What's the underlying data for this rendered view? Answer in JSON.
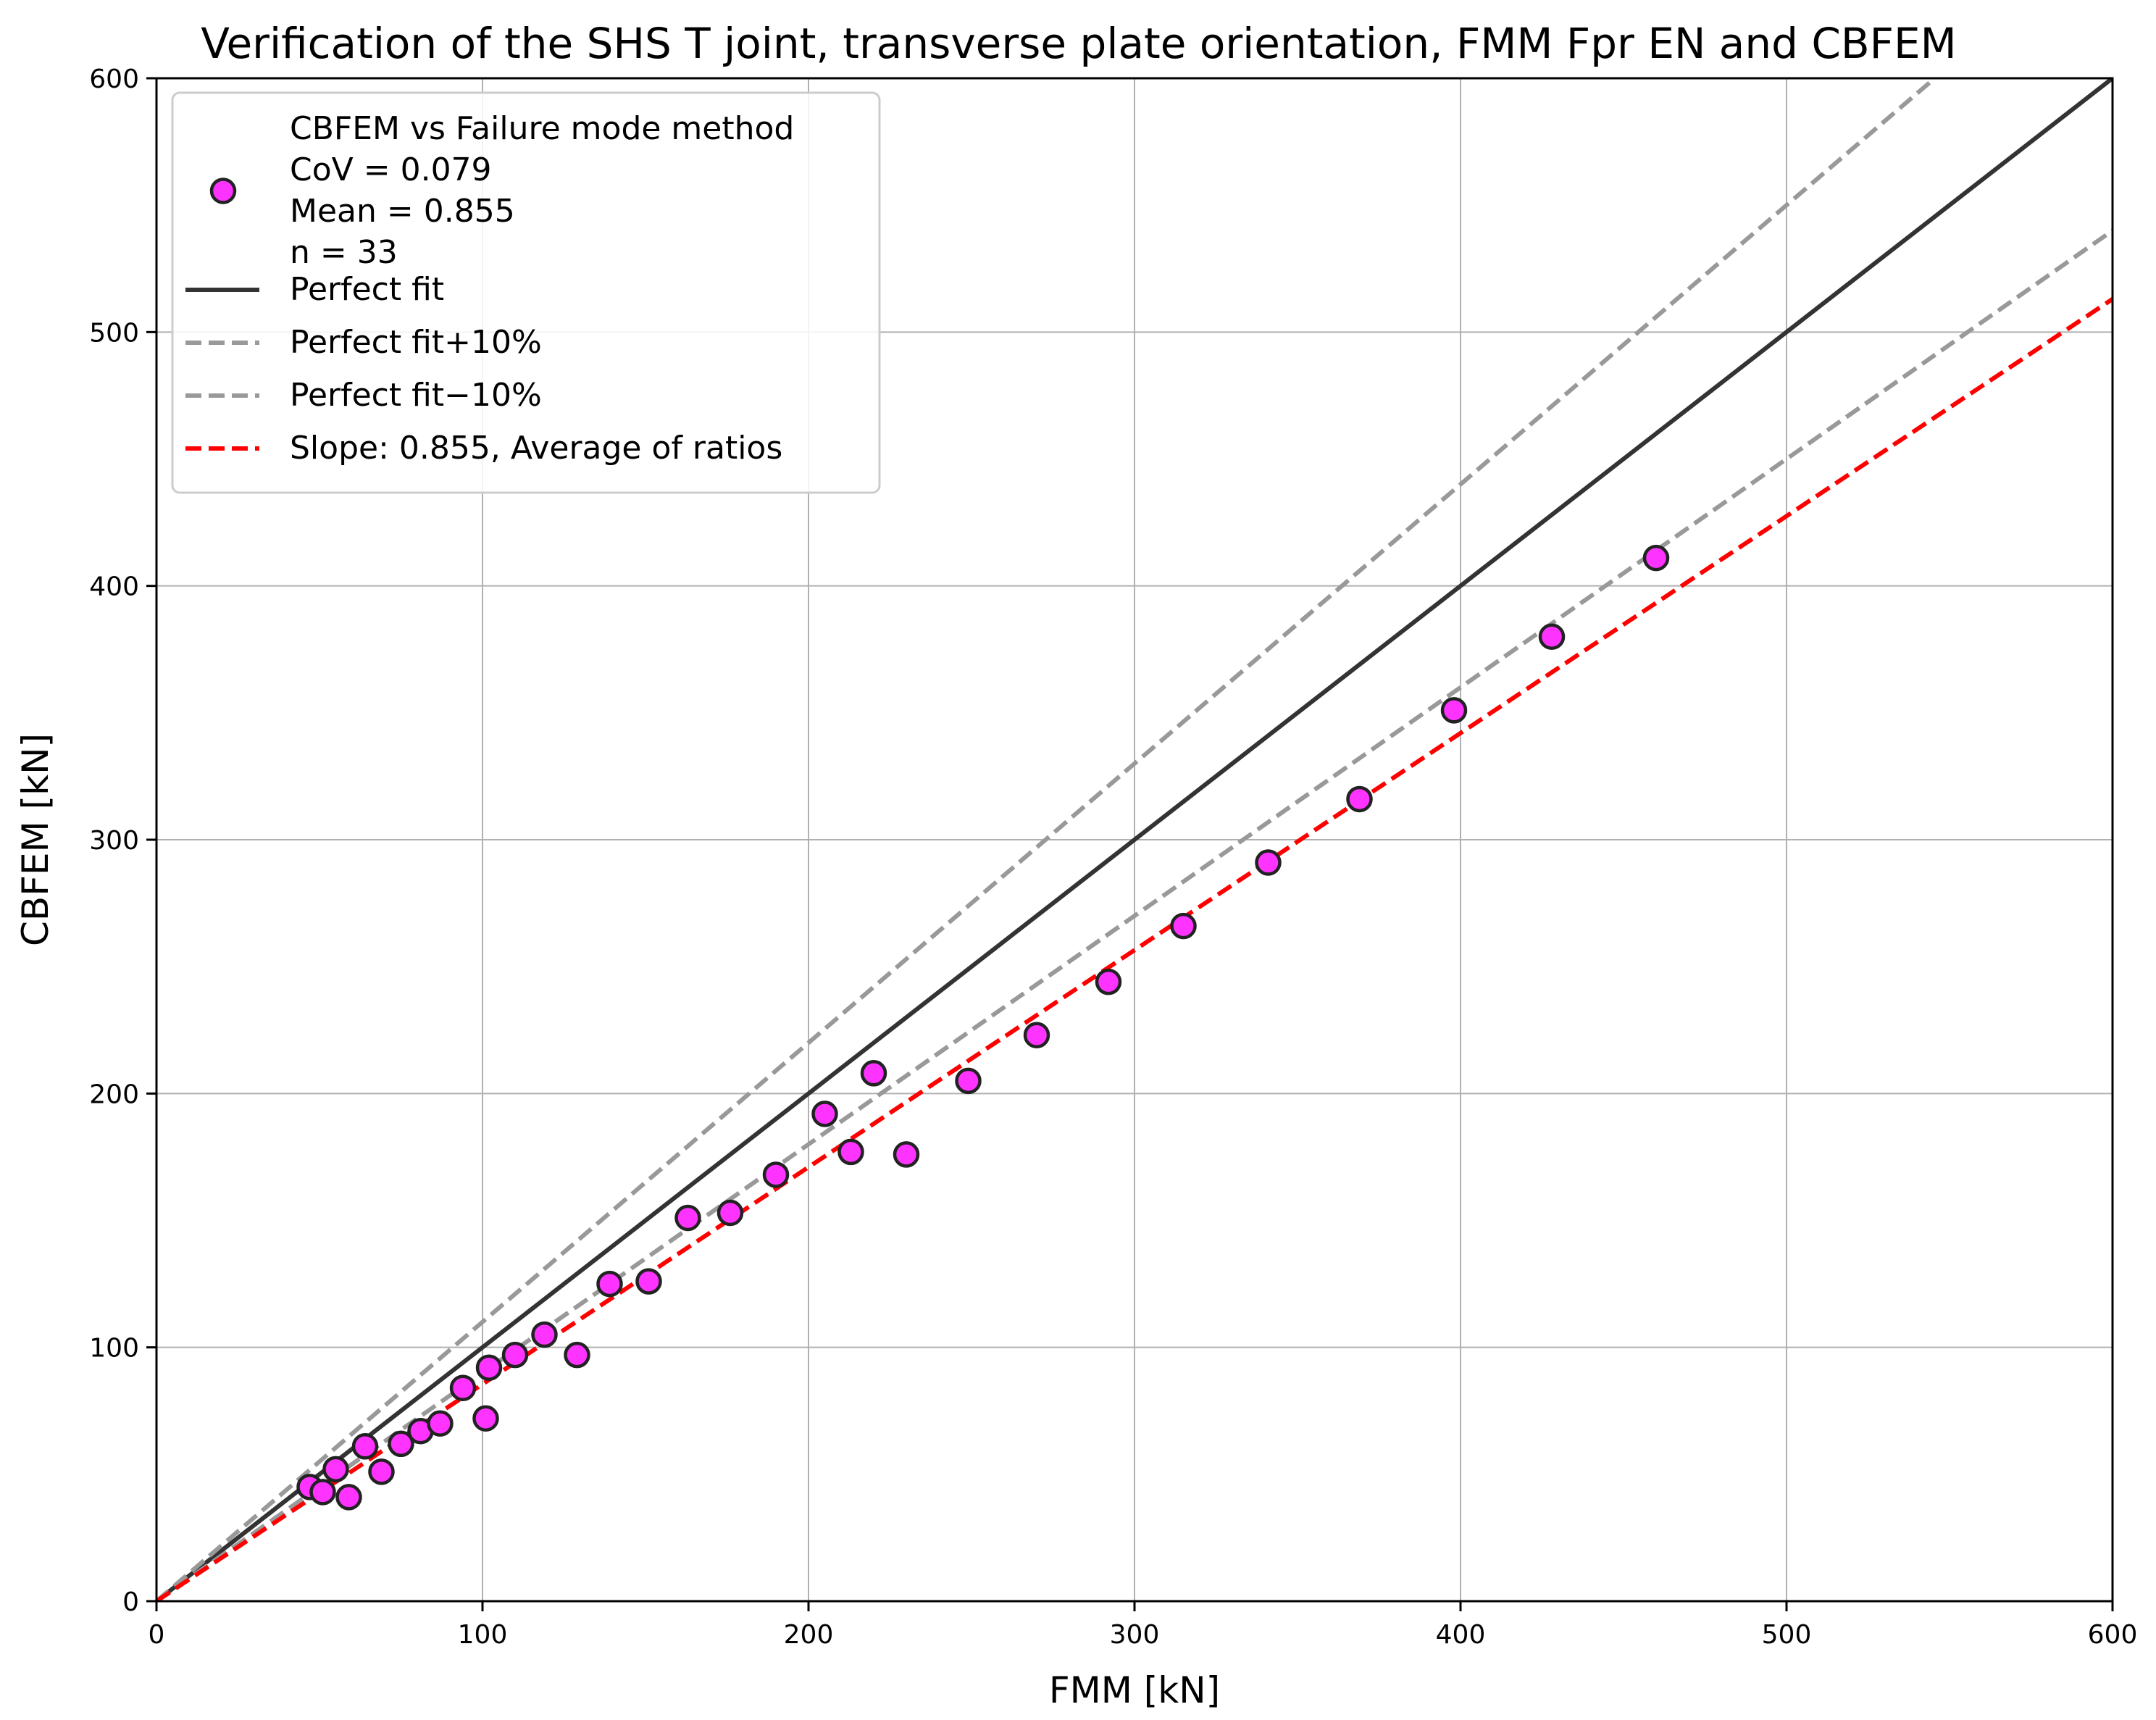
{
  "chart_data": {
    "type": "scatter",
    "title": "Verification of the SHS T joint, transverse plate orientation, FMM Fpr EN and CBFEM",
    "xlabel": "FMM [kN]",
    "ylabel": "CBFEM [kN]",
    "xlim": [
      0,
      600
    ],
    "ylim": [
      0,
      600
    ],
    "xticks": [
      0,
      100,
      200,
      300,
      400,
      500,
      600
    ],
    "yticks": [
      0,
      100,
      200,
      300,
      400,
      500,
      600
    ],
    "grid": true,
    "legend_position": "top-left",
    "scatter": {
      "legend_lines": [
        "CBFEM vs Failure mode method",
        "CoV = 0.079",
        "Mean = 0.855",
        "n = 33"
      ],
      "color": "#ff33ff",
      "edge_color": "#222222",
      "points": [
        {
          "x": 47,
          "y": 45
        },
        {
          "x": 51,
          "y": 43
        },
        {
          "x": 55,
          "y": 52
        },
        {
          "x": 59,
          "y": 41
        },
        {
          "x": 64,
          "y": 61
        },
        {
          "x": 69,
          "y": 51
        },
        {
          "x": 75,
          "y": 62
        },
        {
          "x": 81,
          "y": 67
        },
        {
          "x": 87,
          "y": 70
        },
        {
          "x": 94,
          "y": 84
        },
        {
          "x": 102,
          "y": 92
        },
        {
          "x": 101,
          "y": 72
        },
        {
          "x": 110,
          "y": 97
        },
        {
          "x": 119,
          "y": 105
        },
        {
          "x": 129,
          "y": 97
        },
        {
          "x": 139,
          "y": 125
        },
        {
          "x": 151,
          "y": 126
        },
        {
          "x": 163,
          "y": 151
        },
        {
          "x": 176,
          "y": 153
        },
        {
          "x": 190,
          "y": 168
        },
        {
          "x": 205,
          "y": 192
        },
        {
          "x": 213,
          "y": 177
        },
        {
          "x": 220,
          "y": 208
        },
        {
          "x": 230,
          "y": 176
        },
        {
          "x": 249,
          "y": 205
        },
        {
          "x": 270,
          "y": 223
        },
        {
          "x": 292,
          "y": 244
        },
        {
          "x": 315,
          "y": 266
        },
        {
          "x": 341,
          "y": 291
        },
        {
          "x": 369,
          "y": 316
        },
        {
          "x": 398,
          "y": 351
        },
        {
          "x": 428,
          "y": 380
        },
        {
          "x": 460,
          "y": 411
        }
      ]
    },
    "lines": [
      {
        "label": "Perfect fit",
        "slope": 1.0,
        "color": "#333333",
        "style": "solid"
      },
      {
        "label": "Perfect fit+10%",
        "slope": 1.1,
        "color": "#999999",
        "style": "dashed"
      },
      {
        "label": "Perfect fit−10%",
        "slope": 0.9,
        "color": "#999999",
        "style": "dashed"
      },
      {
        "label": "Slope: 0.855, Average of ratios",
        "slope": 0.855,
        "color": "#ff0000",
        "style": "dashed"
      }
    ]
  }
}
